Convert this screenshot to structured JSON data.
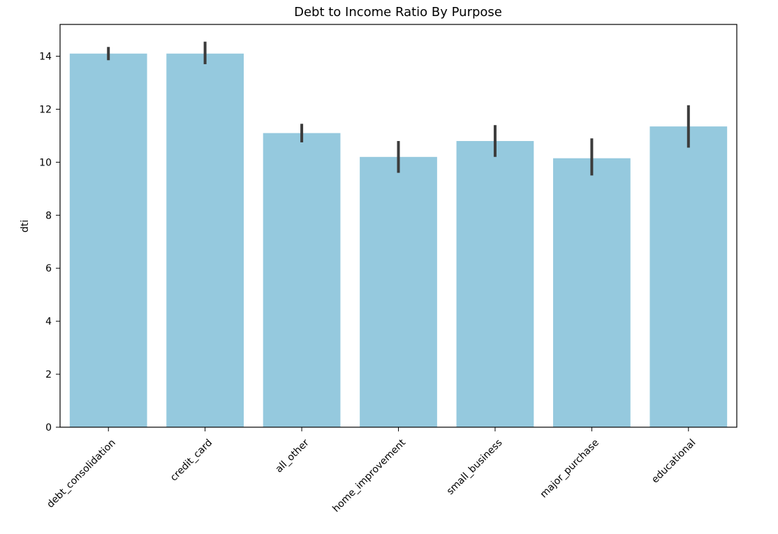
{
  "chart_data": {
    "type": "bar",
    "title": "Debt to Income Ratio By Purpose",
    "xlabel": "",
    "ylabel": "dti",
    "categories": [
      "debt_consolidation",
      "credit_card",
      "all_other",
      "home_improvement",
      "small_business",
      "major_purchase",
      "educational"
    ],
    "values": [
      14.1,
      14.1,
      11.1,
      10.2,
      10.8,
      10.15,
      11.35
    ],
    "error_low": [
      13.85,
      13.7,
      10.75,
      9.6,
      10.2,
      9.5,
      10.55
    ],
    "error_high": [
      14.35,
      14.55,
      11.45,
      10.8,
      11.4,
      10.9,
      12.15
    ],
    "ylim": [
      0,
      15.2
    ],
    "yticks": [
      0,
      2,
      4,
      6,
      8,
      10,
      12,
      14
    ],
    "grid": false,
    "legend": "none",
    "colors": {
      "bar": "#95c9de",
      "errorbar": "#3c3c3c",
      "axis": "#000000",
      "background": "#ffffff"
    }
  }
}
